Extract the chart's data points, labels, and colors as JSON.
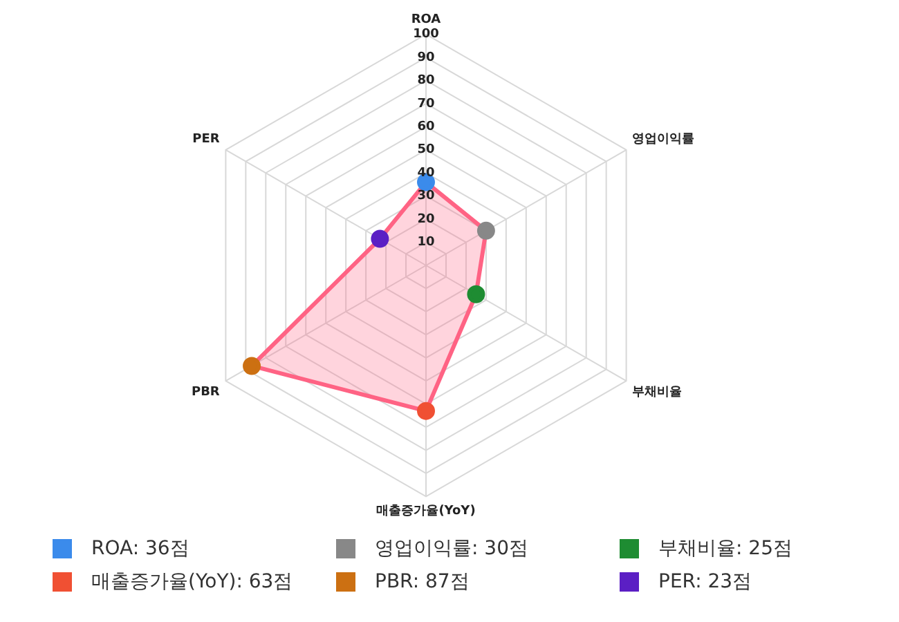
{
  "chart_data": {
    "type": "radar",
    "categories": [
      "ROA",
      "영업이익률",
      "부채비율",
      "매출증가율(YoY)",
      "PBR",
      "PER"
    ],
    "series": [
      {
        "color": "#ff6384",
        "values": [
          36,
          30,
          25,
          63,
          87,
          23
        ]
      }
    ],
    "colors": [
      "#3b8beb",
      "#888888",
      "#1e8c32",
      "#f05033",
      "#cc7012",
      "#5b1fc4"
    ],
    "value_labels": [
      "ROA: 36점",
      "영업이익률: 30점",
      "부채비율: 25점",
      "매출증가율(YoY): 63점",
      "PBR: 87점",
      "PER: 23점"
    ],
    "ylim": [
      0,
      100
    ],
    "yticks": [
      10,
      20,
      30,
      40,
      50,
      60,
      70,
      80,
      90,
      100
    ],
    "grid": true,
    "marker": "circle"
  }
}
